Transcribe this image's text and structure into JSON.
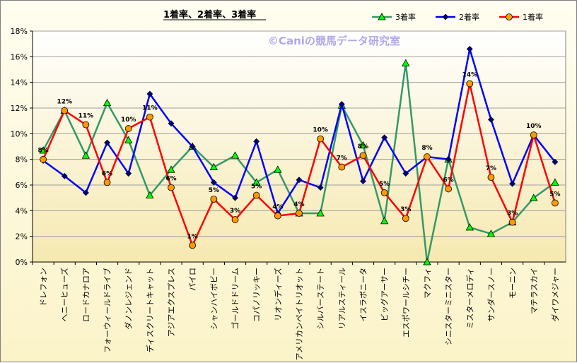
{
  "chart_data": {
    "type": "line",
    "title": "1着率、2着率、3着率",
    "watermark": "©Caniの競馬データ研究室",
    "ylim": [
      0,
      18
    ],
    "y_ticks": [
      "0%",
      "2%",
      "4%",
      "6%",
      "8%",
      "10%",
      "12%",
      "14%",
      "16%",
      "18%"
    ],
    "grid": true,
    "legend_position": "top-right",
    "categories": [
      "ドレフォン",
      "ヘニーヒューズ",
      "ロードカナロア",
      "フォーウィールドライブ",
      "ダノンレジェンド",
      "ディスクリートキャット",
      "アジアエクスプレス",
      "パイロ",
      "シャンハイボビー",
      "ゴールドドリーム",
      "コパノリッキー",
      "リオンディーズ",
      "アメリカンペイトリオット",
      "シルバーステート",
      "リアルスティール",
      "イスラボニータ",
      "ビッグアーサー",
      "エスポワールシチー",
      "マクフィ",
      "シニスターミニスター",
      "ミスターメロディ",
      "サンダースノー",
      "モーニン",
      "マテラスカイ",
      "ダイワメジャー"
    ],
    "series": [
      {
        "name": "3着率",
        "color": "#339966",
        "marker": "triangle",
        "marker_fill": "#00ff00",
        "values": [
          8.7,
          11.8,
          8.3,
          12.4,
          9.5,
          5.2,
          7.2,
          9.0,
          7.4,
          8.3,
          6.2,
          7.2,
          3.8,
          3.8,
          12.2,
          9.1,
          3.2,
          15.5,
          0.0,
          8.0,
          2.7,
          2.2,
          3.1,
          5.0,
          6.2
        ]
      },
      {
        "name": "2着率",
        "color": "#0000ff",
        "marker": "diamond",
        "marker_fill": "#000080",
        "values": [
          7.9,
          6.7,
          5.4,
          9.3,
          6.9,
          13.1,
          10.8,
          9.0,
          6.2,
          5.0,
          9.4,
          3.8,
          6.4,
          5.8,
          12.3,
          6.3,
          9.7,
          6.9,
          8.2,
          8.0,
          16.6,
          11.1,
          6.1,
          9.9,
          7.8
        ]
      },
      {
        "name": "1着率",
        "color": "#ff0000",
        "marker": "circle",
        "marker_fill": "#ff9900",
        "values": [
          8.0,
          11.8,
          10.7,
          6.2,
          10.4,
          11.3,
          5.8,
          1.3,
          4.9,
          3.3,
          5.2,
          3.6,
          3.8,
          9.6,
          7.4,
          8.3,
          5.4,
          3.4,
          8.2,
          5.7,
          13.9,
          6.6,
          3.1,
          9.9,
          4.6
        ]
      }
    ],
    "data_labels_series": "1着率",
    "data_labels": [
      "8%",
      "12%",
      "11%",
      "6%",
      "10%",
      "11%",
      "6%",
      "1%",
      "5%",
      "3%",
      "5%",
      "4%",
      "4%",
      "10%",
      "7%",
      "8%",
      "5%",
      "3%",
      "8%",
      "6%",
      "14%",
      "7%",
      "3%",
      "10%",
      "5%"
    ]
  }
}
